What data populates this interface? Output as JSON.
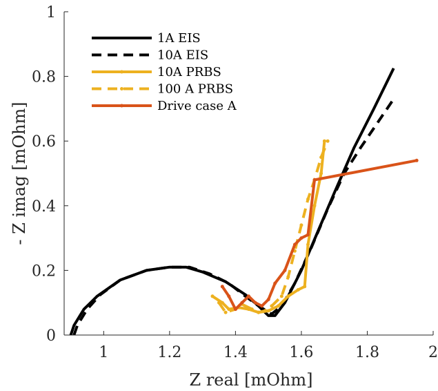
{
  "chart_data": {
    "type": "line",
    "xlabel": "Z real [mOhm]",
    "ylabel": "- Z imag [mOhm]",
    "xlim": [
      0.88,
      2.0
    ],
    "ylim": [
      0,
      1.0
    ],
    "xticks": [
      1,
      1.2,
      1.4,
      1.6,
      1.8,
      2
    ],
    "yticks": [
      0,
      0.2,
      0.4,
      0.6,
      0.8,
      1
    ],
    "xtick_labels": [
      "1",
      "1.2",
      "1.4",
      "1.6",
      "1.8",
      "2"
    ],
    "ytick_labels": [
      "0",
      "0.2",
      "0.4",
      "0.6",
      "0.8",
      "1"
    ],
    "grid": false,
    "legend_position": "top-left",
    "series": [
      {
        "name": "1A EIS",
        "color": "#000000",
        "dash": "solid",
        "markers": false,
        "points": [
          [
            0.9,
            0.0
          ],
          [
            0.91,
            0.03
          ],
          [
            0.94,
            0.08
          ],
          [
            0.98,
            0.12
          ],
          [
            1.05,
            0.17
          ],
          [
            1.13,
            0.2
          ],
          [
            1.2,
            0.21
          ],
          [
            1.25,
            0.21
          ],
          [
            1.3,
            0.195
          ],
          [
            1.37,
            0.165
          ],
          [
            1.43,
            0.125
          ],
          [
            1.47,
            0.09
          ],
          [
            1.5,
            0.06
          ],
          [
            1.52,
            0.06
          ],
          [
            1.55,
            0.1
          ],
          [
            1.6,
            0.2
          ],
          [
            1.65,
            0.32
          ],
          [
            1.7,
            0.44
          ],
          [
            1.76,
            0.58
          ],
          [
            1.82,
            0.7
          ],
          [
            1.88,
            0.825
          ]
        ]
      },
      {
        "name": "10A EIS",
        "color": "#000000",
        "dash": "dashed",
        "markers": false,
        "points": [
          [
            0.91,
            0.0
          ],
          [
            0.92,
            0.03
          ],
          [
            0.95,
            0.08
          ],
          [
            0.99,
            0.125
          ],
          [
            1.05,
            0.17
          ],
          [
            1.13,
            0.2
          ],
          [
            1.2,
            0.21
          ],
          [
            1.26,
            0.21
          ],
          [
            1.32,
            0.19
          ],
          [
            1.38,
            0.16
          ],
          [
            1.43,
            0.12
          ],
          [
            1.47,
            0.09
          ],
          [
            1.51,
            0.065
          ],
          [
            1.54,
            0.09
          ],
          [
            1.58,
            0.16
          ],
          [
            1.63,
            0.27
          ],
          [
            1.68,
            0.39
          ],
          [
            1.73,
            0.5
          ],
          [
            1.78,
            0.58
          ],
          [
            1.83,
            0.655
          ],
          [
            1.88,
            0.73
          ]
        ]
      },
      {
        "name": "10A PRBS",
        "color": "#edb120",
        "dash": "solid",
        "markers": true,
        "points": [
          [
            1.33,
            0.12
          ],
          [
            1.36,
            0.1
          ],
          [
            1.38,
            0.08
          ],
          [
            1.41,
            0.085
          ],
          [
            1.44,
            0.08
          ],
          [
            1.47,
            0.07
          ],
          [
            1.5,
            0.075
          ],
          [
            1.53,
            0.09
          ],
          [
            1.56,
            0.12
          ],
          [
            1.59,
            0.14
          ],
          [
            1.61,
            0.15
          ],
          [
            1.62,
            0.28
          ],
          [
            1.64,
            0.4
          ],
          [
            1.66,
            0.5
          ],
          [
            1.67,
            0.6
          ]
        ]
      },
      {
        "name": "100 A PRBS",
        "color": "#edb120",
        "dash": "dashed",
        "markers": true,
        "points": [
          [
            1.35,
            0.1
          ],
          [
            1.37,
            0.07
          ],
          [
            1.4,
            0.08
          ],
          [
            1.42,
            0.095
          ],
          [
            1.45,
            0.08
          ],
          [
            1.47,
            0.07
          ],
          [
            1.49,
            0.075
          ],
          [
            1.51,
            0.09
          ],
          [
            1.54,
            0.12
          ],
          [
            1.56,
            0.18
          ],
          [
            1.58,
            0.26
          ],
          [
            1.6,
            0.34
          ],
          [
            1.62,
            0.42
          ],
          [
            1.64,
            0.48
          ],
          [
            1.66,
            0.55
          ],
          [
            1.68,
            0.6
          ]
        ]
      },
      {
        "name": "Drive case A",
        "color": "#d95319",
        "dash": "solid",
        "markers": true,
        "points": [
          [
            1.36,
            0.15
          ],
          [
            1.38,
            0.12
          ],
          [
            1.4,
            0.08
          ],
          [
            1.42,
            0.1
          ],
          [
            1.44,
            0.12
          ],
          [
            1.46,
            0.1
          ],
          [
            1.48,
            0.09
          ],
          [
            1.5,
            0.11
          ],
          [
            1.52,
            0.16
          ],
          [
            1.55,
            0.2
          ],
          [
            1.58,
            0.28
          ],
          [
            1.6,
            0.3
          ],
          [
            1.62,
            0.31
          ],
          [
            1.64,
            0.48
          ],
          [
            1.95,
            0.54
          ]
        ]
      }
    ]
  }
}
